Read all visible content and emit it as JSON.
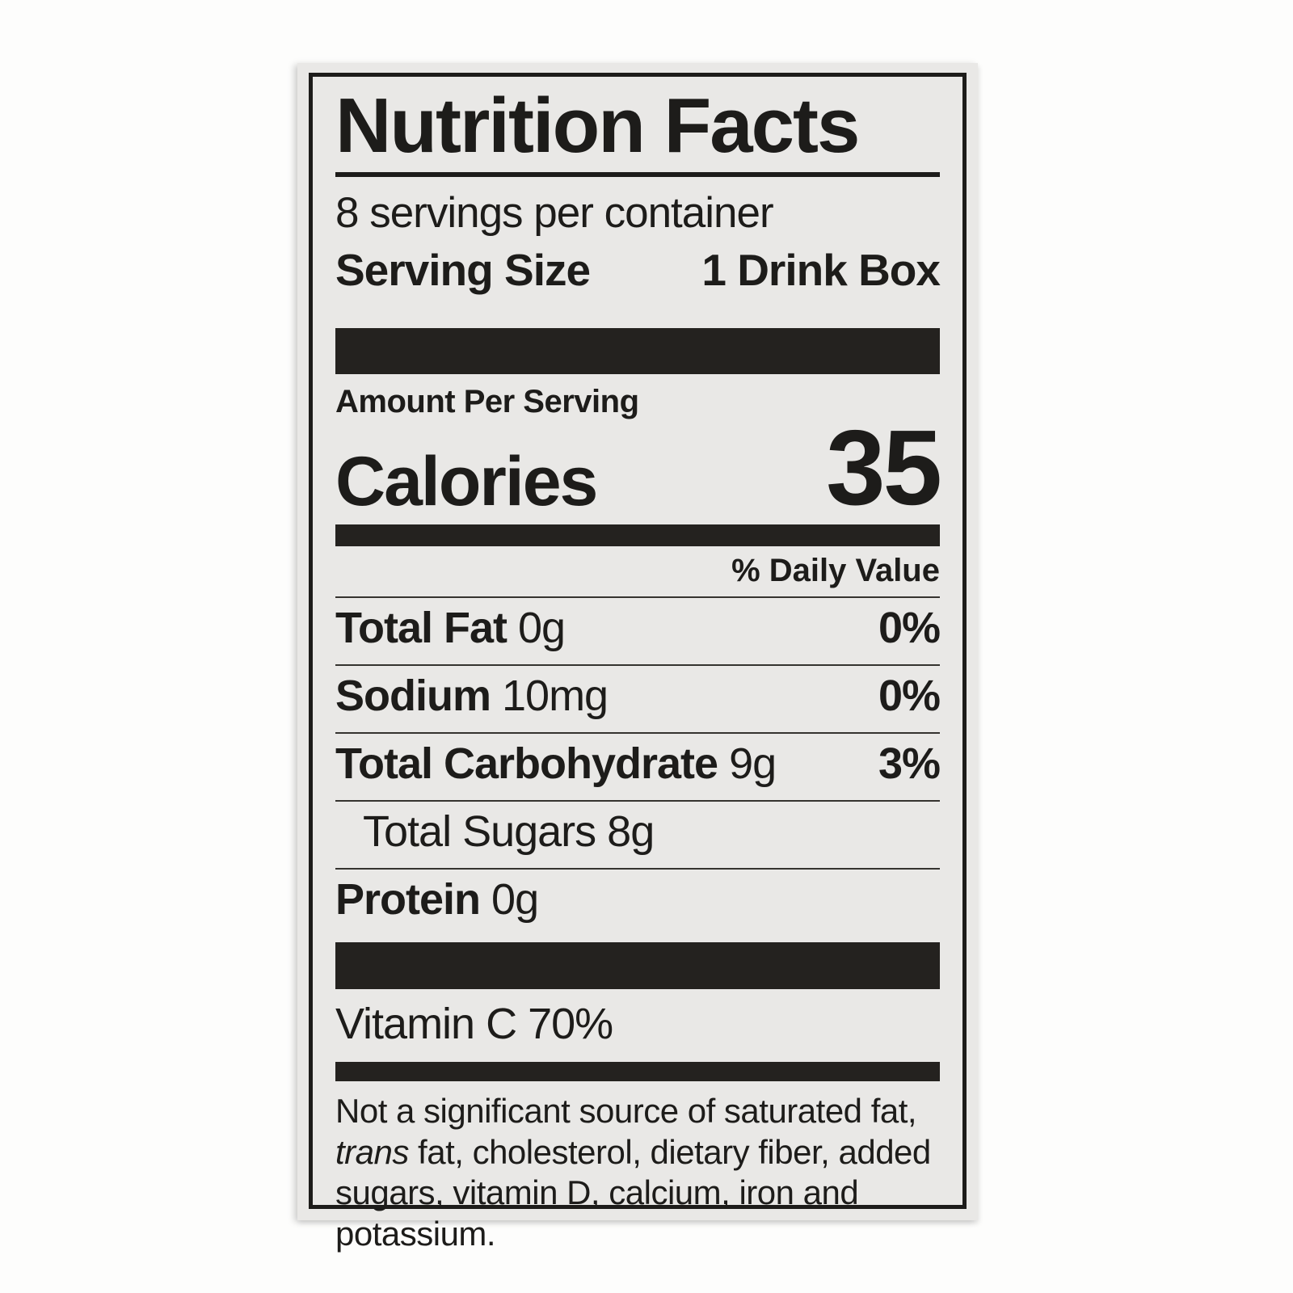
{
  "page": {
    "background": "#fdfdfc"
  },
  "label": {
    "panel_bg": "#e9e8e6",
    "text_color": "#1d1c1a",
    "title": "Nutrition Facts",
    "servings_per_container": "8 servings per container",
    "serving_size": {
      "label": "Serving Size",
      "value": "1 Drink Box"
    },
    "amount_per_serving": "Amount Per Serving",
    "calories": {
      "label": "Calories",
      "value": "35"
    },
    "daily_value_header": "% Daily Value",
    "nutrients": [
      {
        "name": "Total Fat",
        "amount": "0g",
        "daily_value": "0%"
      },
      {
        "name": "Sodium",
        "amount": "10mg",
        "daily_value": "0%"
      },
      {
        "name": "Total Carbohydrate",
        "amount": "9g",
        "daily_value": "3%"
      },
      {
        "name": "Total Sugars",
        "amount": "8g",
        "daily_value": ""
      },
      {
        "name": "Protein",
        "amount": "0g",
        "daily_value": ""
      }
    ],
    "vitamins": [
      {
        "name": "Vitamin C",
        "value": "70%"
      }
    ],
    "footnote": [
      {
        "text": "Not a significant source of saturated fat, "
      },
      {
        "text": "trans"
      },
      {
        "text": " fat, cholesterol, dietary fiber, added sugars, vitamin D, calcium, iron and potassium."
      }
    ]
  }
}
